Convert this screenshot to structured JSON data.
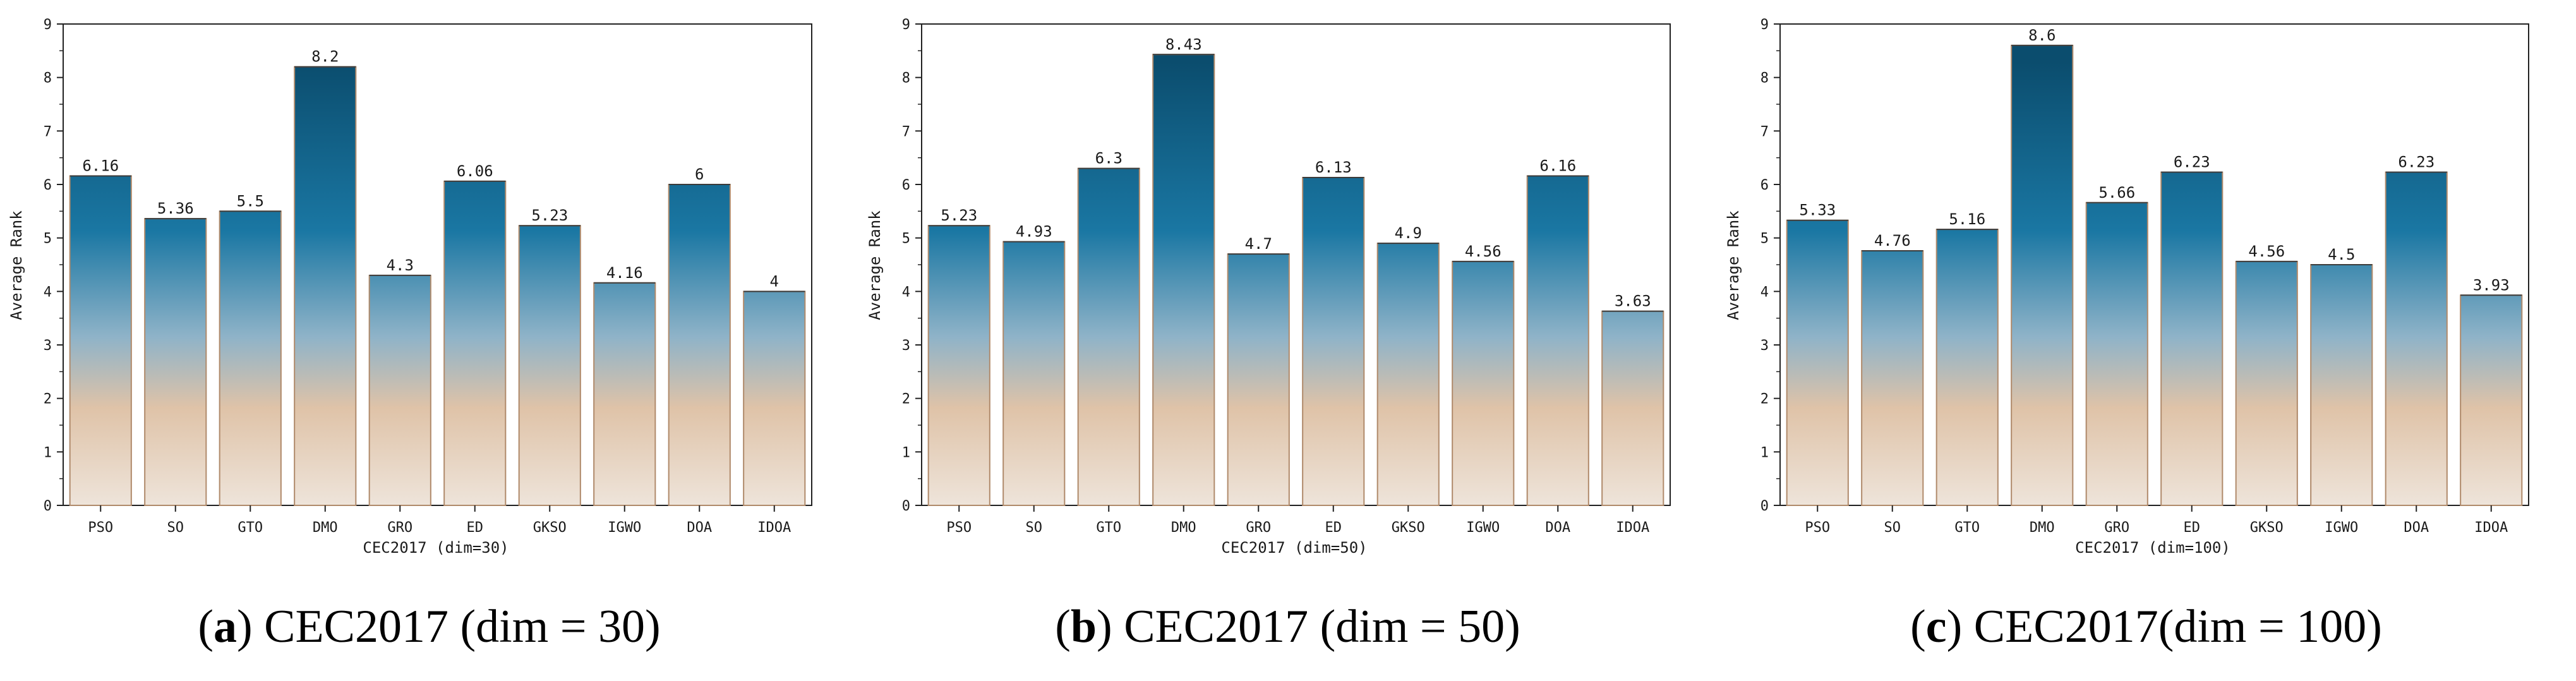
{
  "colors": {
    "bar_top": "#0b4d6e",
    "bar_mid": "#1a77a3",
    "bar_light": "#8fb3c8",
    "bar_sand": "#dfc3a8",
    "bar_bottom": "#eee4da",
    "bar_outline": "#b08a6b",
    "axis": "#222222"
  },
  "chart_data": [
    {
      "type": "bar",
      "caption": {
        "letter": "a",
        "text": " CEC2017 (dim = 30)"
      },
      "categories": [
        "PSO",
        "SO",
        "GTO",
        "DMO",
        "GRO",
        "ED",
        "GKSO",
        "IGWO",
        "DOA",
        "IDOA"
      ],
      "values": [
        6.16,
        5.36,
        5.5,
        8.2,
        4.3,
        6.06,
        5.23,
        4.16,
        6,
        4
      ],
      "value_labels": [
        "6.16",
        "5.36",
        "5.5",
        "8.2",
        "4.3",
        "6.06",
        "5.23",
        "4.16",
        "6",
        "4"
      ],
      "xlabel": "CEC2017 (dim=30)",
      "ylabel": "Average Rank",
      "ylim": [
        0,
        9
      ],
      "yticks": [
        "0",
        "1",
        "2",
        "3",
        "4",
        "5",
        "6",
        "7",
        "8",
        "9"
      ]
    },
    {
      "type": "bar",
      "caption": {
        "letter": "b",
        "text": " CEC2017 (dim = 50)"
      },
      "categories": [
        "PSO",
        "SO",
        "GTO",
        "DMO",
        "GRO",
        "ED",
        "GKSO",
        "IGWO",
        "DOA",
        "IDOA"
      ],
      "values": [
        5.23,
        4.93,
        6.3,
        8.43,
        4.7,
        6.13,
        4.9,
        4.56,
        6.16,
        3.63
      ],
      "value_labels": [
        "5.23",
        "4.93",
        "6.3",
        "8.43",
        "4.7",
        "6.13",
        "4.9",
        "4.56",
        "6.16",
        "3.63"
      ],
      "xlabel": "CEC2017 (dim=50)",
      "ylabel": "Average Rank",
      "ylim": [
        0,
        9
      ],
      "yticks": [
        "0",
        "1",
        "2",
        "3",
        "4",
        "5",
        "6",
        "7",
        "8",
        "9"
      ]
    },
    {
      "type": "bar",
      "caption": {
        "letter": "c",
        "text": " CEC2017(dim = 100)"
      },
      "categories": [
        "PSO",
        "SO",
        "GTO",
        "DMO",
        "GRO",
        "ED",
        "GKSO",
        "IGWO",
        "DOA",
        "IDOA"
      ],
      "values": [
        5.33,
        4.76,
        5.16,
        8.6,
        5.66,
        6.23,
        4.56,
        4.5,
        6.23,
        3.93
      ],
      "value_labels": [
        "5.33",
        "4.76",
        "5.16",
        "8.6",
        "5.66",
        "6.23",
        "4.56",
        "4.5",
        "6.23",
        "3.93"
      ],
      "xlabel": "CEC2017 (dim=100)",
      "ylabel": "Average Rank",
      "ylim": [
        0,
        9
      ],
      "yticks": [
        "0",
        "1",
        "2",
        "3",
        "4",
        "5",
        "6",
        "7",
        "8",
        "9"
      ]
    }
  ]
}
